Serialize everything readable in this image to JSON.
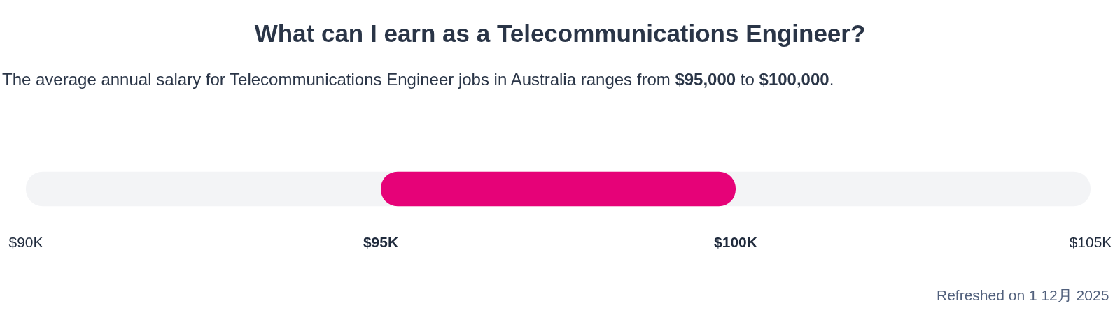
{
  "chart_data": {
    "type": "bar",
    "orientation": "horizontal",
    "title": "What can I earn as a Telecommunications Engineer?",
    "subtitle": "The average annual salary for Telecommunications Engineer jobs in Australia ranges from $95,000 to $100,000.",
    "categories": [
      null
    ],
    "values": [
      5000
    ],
    "base": [
      95000
    ],
    "color": "#e60278",
    "xlim": [
      90000,
      105000
    ],
    "xticks": [
      {
        "value": 90000,
        "label": "$90K"
      },
      {
        "value": 95000,
        "label": "$95K"
      },
      {
        "value": 100000,
        "label": "$100K"
      },
      {
        "value": 105000,
        "label": "$105K"
      }
    ],
    "bands": [
      {
        "axis": "x",
        "from": 90000,
        "to": 105000,
        "color": "#f3f4f6"
      }
    ],
    "annotations": [
      "Refreshed on 1 12月 2025"
    ]
  }
}
